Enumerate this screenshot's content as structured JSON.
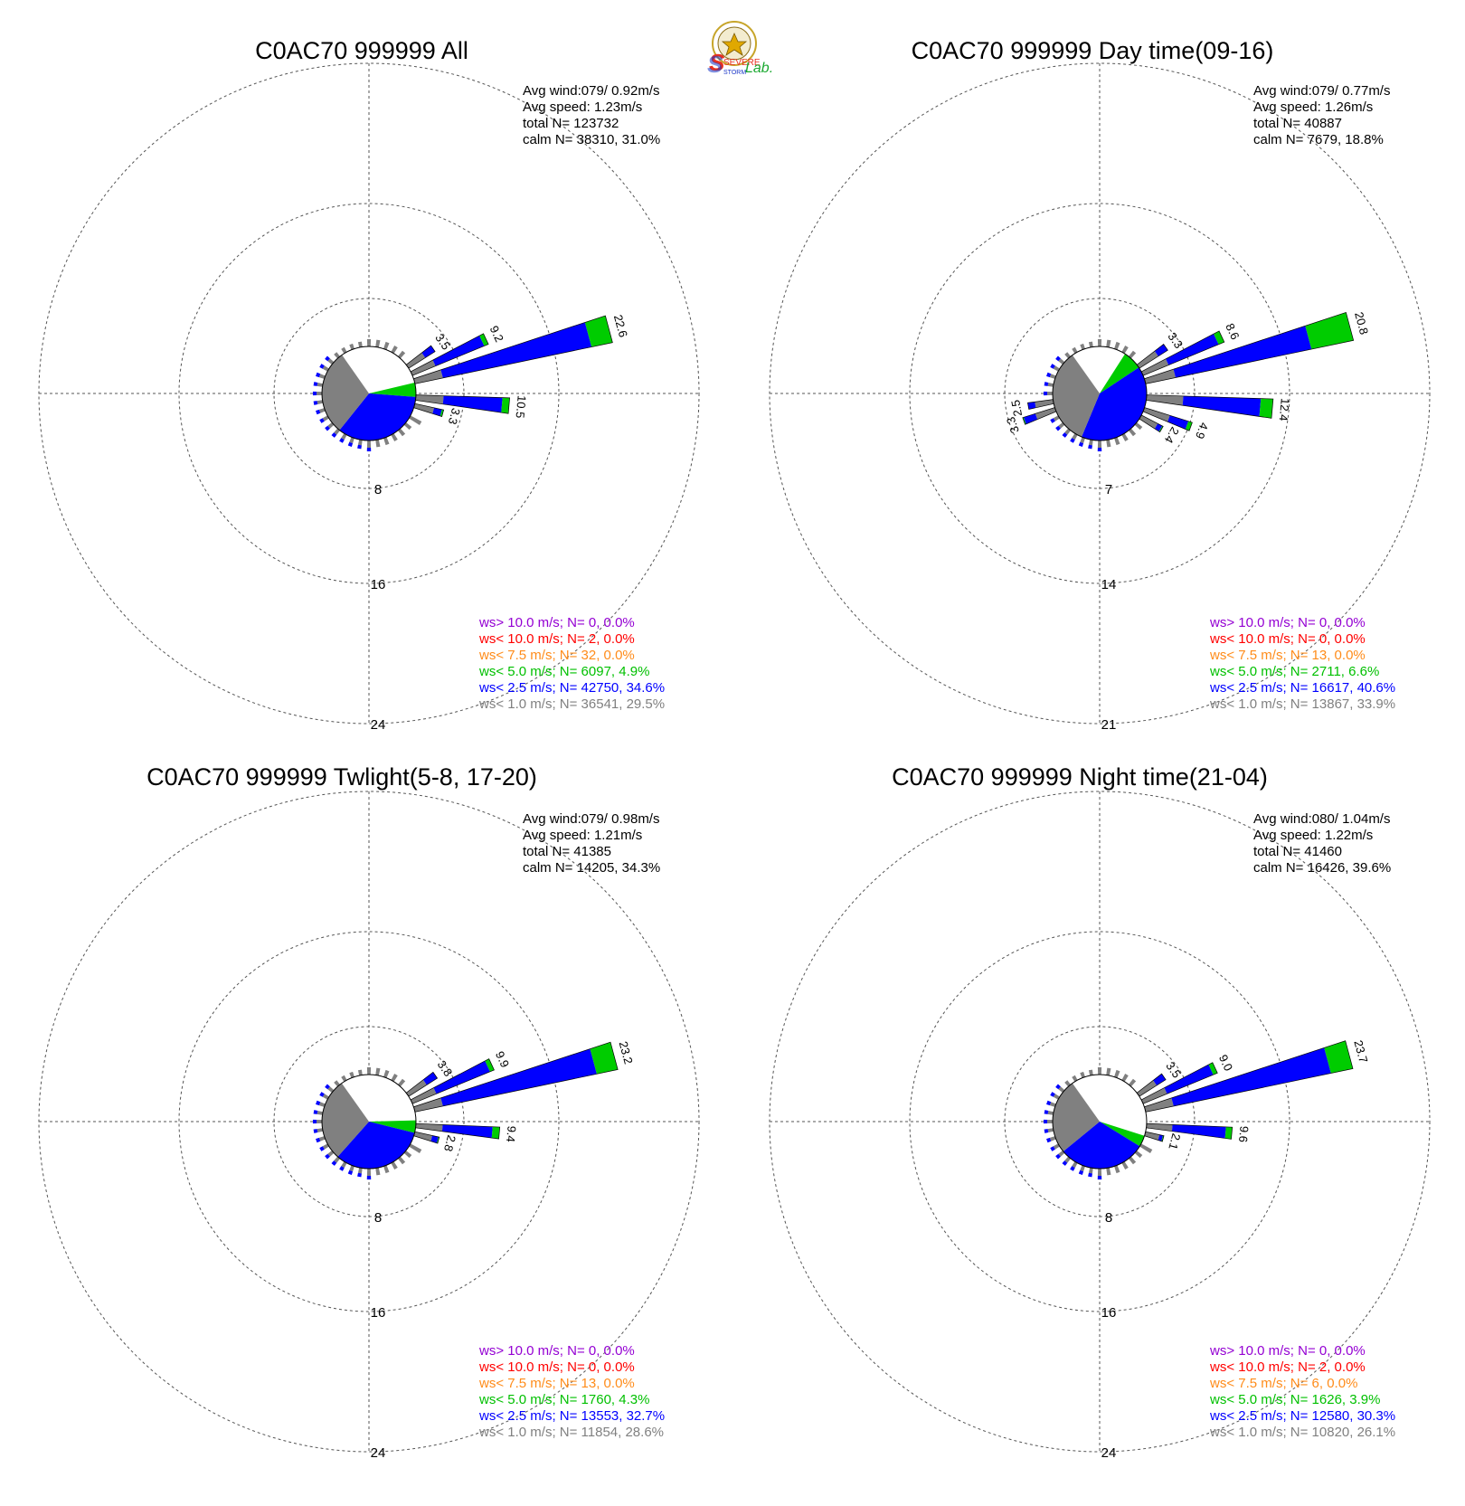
{
  "logo": {
    "lab_text_severe": "SEVERE",
    "lab_text_storm": "STORM",
    "lab_text_lab": "Lab.",
    "colors": {
      "s_red": "#e83020",
      "s_blue": "#1a36c8",
      "lab_green": "#1aa830",
      "seal": "#c7a52a"
    }
  },
  "legend_colors": [
    "#9400d3",
    "#ff0000",
    "#ff8c1a",
    "#00c000",
    "#0000ff",
    "#808080"
  ],
  "speed_bin_colors": {
    "gray": "#808080",
    "blue": "#0000ff",
    "green": "#00cc00"
  },
  "chart_data": [
    {
      "type": "windrose",
      "title": "C0AC70 999999 All",
      "info": [
        "Avg wind:079/ 0.92m/s",
        "Avg speed: 1.23m/s",
        "total N=      123732",
        "calm N=  38310,  31.0%"
      ],
      "ring_labels": [
        "8",
        "16",
        "24"
      ],
      "ring_values": [
        8,
        16,
        24
      ],
      "calm_pie": {
        "white": 0.31,
        "gray": 0.295,
        "blue": 0.346,
        "green": 0.049
      },
      "spokes": [
        {
          "dir": 75,
          "gray": 3.2,
          "blue": 17.0,
          "green": 2.4,
          "label": "22.6"
        },
        {
          "dir": 65,
          "gray": 2.8,
          "blue": 5.9,
          "green": 0.5,
          "label": "9.2"
        },
        {
          "dir": 55,
          "gray": 2.2,
          "blue": 1.3,
          "green": 0.0,
          "label": "3.5"
        },
        {
          "dir": 95,
          "gray": 3.1,
          "blue": 6.6,
          "green": 0.8,
          "label": "10.5"
        },
        {
          "dir": 105,
          "gray": 2.2,
          "blue": 0.9,
          "green": 0.2,
          "label": "3.3"
        }
      ],
      "legend": [
        "ws> 10.0 m/s; N=     0,  0.0%",
        "ws< 10.0 m/s; N=     2,  0.0%",
        "ws<  7.5 m/s; N=    32,  0.0%",
        "ws<  5.0 m/s; N=  6097,  4.9%",
        "ws<  2.5 m/s; N= 42750, 34.6%",
        "ws<  1.0 m/s; N= 36541, 29.5%"
      ]
    },
    {
      "type": "windrose",
      "title": "C0AC70 999999 Day time(09-16)",
      "info": [
        "Avg wind:079/ 0.77m/s",
        "Avg speed: 1.26m/s",
        "total N=       40887",
        "calm N=   7679,  18.8%"
      ],
      "ring_labels": [
        "7",
        "14",
        "21"
      ],
      "ring_values": [
        7,
        14,
        21
      ],
      "calm_pie": {
        "white": 0.188,
        "gray": 0.339,
        "blue": 0.406,
        "green": 0.066
      },
      "spokes": [
        {
          "dir": 75,
          "gray": 3.0,
          "blue": 13.6,
          "green": 4.2,
          "label": "20.8"
        },
        {
          "dir": 65,
          "gray": 2.7,
          "blue": 5.3,
          "green": 0.6,
          "label": "8.6"
        },
        {
          "dir": 55,
          "gray": 2.2,
          "blue": 1.1,
          "green": 0.0,
          "label": "3.3"
        },
        {
          "dir": 95,
          "gray": 3.6,
          "blue": 7.6,
          "green": 1.2,
          "label": "12.4"
        },
        {
          "dir": 110,
          "gray": 2.6,
          "blue": 1.9,
          "green": 0.4,
          "label": "4.9"
        },
        {
          "dir": 120,
          "gray": 1.8,
          "blue": 0.5,
          "green": 0.1,
          "label": "2.4"
        },
        {
          "dir": 260,
          "gray": 1.8,
          "blue": 0.7,
          "green": 0.0,
          "label": "2.5"
        },
        {
          "dir": 250,
          "gray": 2.0,
          "blue": 1.2,
          "green": 0.1,
          "label": "3.3"
        }
      ],
      "legend": [
        "ws> 10.0 m/s; N=     0,  0.0%",
        "ws< 10.0 m/s; N=     0,  0.0%",
        "ws<  7.5 m/s; N=    13,  0.0%",
        "ws<  5.0 m/s; N=  2711,  6.6%",
        "ws<  2.5 m/s; N= 16617, 40.6%",
        "ws<  1.0 m/s; N= 13867, 33.9%"
      ]
    },
    {
      "type": "windrose",
      "title": "C0AC70 999999 Twlight(5-8, 17-20)",
      "info": [
        "Avg wind:079/ 0.98m/s",
        "Avg speed: 1.21m/s",
        "total N=       41385",
        "calm N=  14205,  34.3%"
      ],
      "ring_labels": [
        "8",
        "16",
        "24"
      ],
      "ring_values": [
        8,
        16,
        24
      ],
      "calm_pie": {
        "white": 0.343,
        "gray": 0.286,
        "blue": 0.327,
        "green": 0.043
      },
      "spokes": [
        {
          "dir": 75,
          "gray": 3.2,
          "blue": 17.6,
          "green": 2.4,
          "label": "23.2"
        },
        {
          "dir": 65,
          "gray": 2.9,
          "blue": 6.5,
          "green": 0.5,
          "label": "9.9"
        },
        {
          "dir": 55,
          "gray": 2.4,
          "blue": 1.4,
          "green": 0.0,
          "label": "3.8"
        },
        {
          "dir": 95,
          "gray": 3.0,
          "blue": 5.6,
          "green": 0.8,
          "label": "9.4"
        },
        {
          "dir": 105,
          "gray": 2.0,
          "blue": 0.7,
          "green": 0.1,
          "label": "2.8"
        }
      ],
      "legend": [
        "ws> 10.0 m/s; N=     0,  0.0%",
        "ws< 10.0 m/s; N=     0,  0.0%",
        "ws<  7.5 m/s; N=    13,  0.0%",
        "ws<  5.0 m/s; N=  1760,  4.3%",
        "ws<  2.5 m/s; N= 13553, 32.7%",
        "ws<  1.0 m/s; N= 11854, 28.6%"
      ]
    },
    {
      "type": "windrose",
      "title": "C0AC70 999999 Night time(21-04)",
      "info": [
        "Avg wind:080/ 1.04m/s",
        "Avg speed: 1.22m/s",
        "total N=       41460",
        "calm N=  16426,  39.6%"
      ],
      "ring_labels": [
        "8",
        "16",
        "24"
      ],
      "ring_values": [
        8,
        16,
        24
      ],
      "calm_pie": {
        "white": 0.396,
        "gray": 0.261,
        "blue": 0.303,
        "green": 0.039
      },
      "spokes": [
        {
          "dir": 75,
          "gray": 3.2,
          "blue": 18.0,
          "green": 2.5,
          "label": "23.7"
        },
        {
          "dir": 65,
          "gray": 2.9,
          "blue": 5.6,
          "green": 0.5,
          "label": "9.0"
        },
        {
          "dir": 55,
          "gray": 2.3,
          "blue": 1.2,
          "green": 0.0,
          "label": "3.5"
        },
        {
          "dir": 95,
          "gray": 2.9,
          "blue": 6.0,
          "green": 0.7,
          "label": "9.6"
        },
        {
          "dir": 105,
          "gray": 1.6,
          "blue": 0.4,
          "green": 0.1,
          "label": "2.1"
        }
      ],
      "legend": [
        "ws> 10.0 m/s; N=     0,  0.0%",
        "ws< 10.0 m/s; N=     2,  0.0%",
        "ws<  7.5 m/s; N=     6,  0.0%",
        "ws<  5.0 m/s; N=  1626,  3.9%",
        "ws<  2.5 m/s; N= 12580, 30.3%",
        "ws<  1.0 m/s; N= 10820, 26.1%"
      ]
    }
  ]
}
